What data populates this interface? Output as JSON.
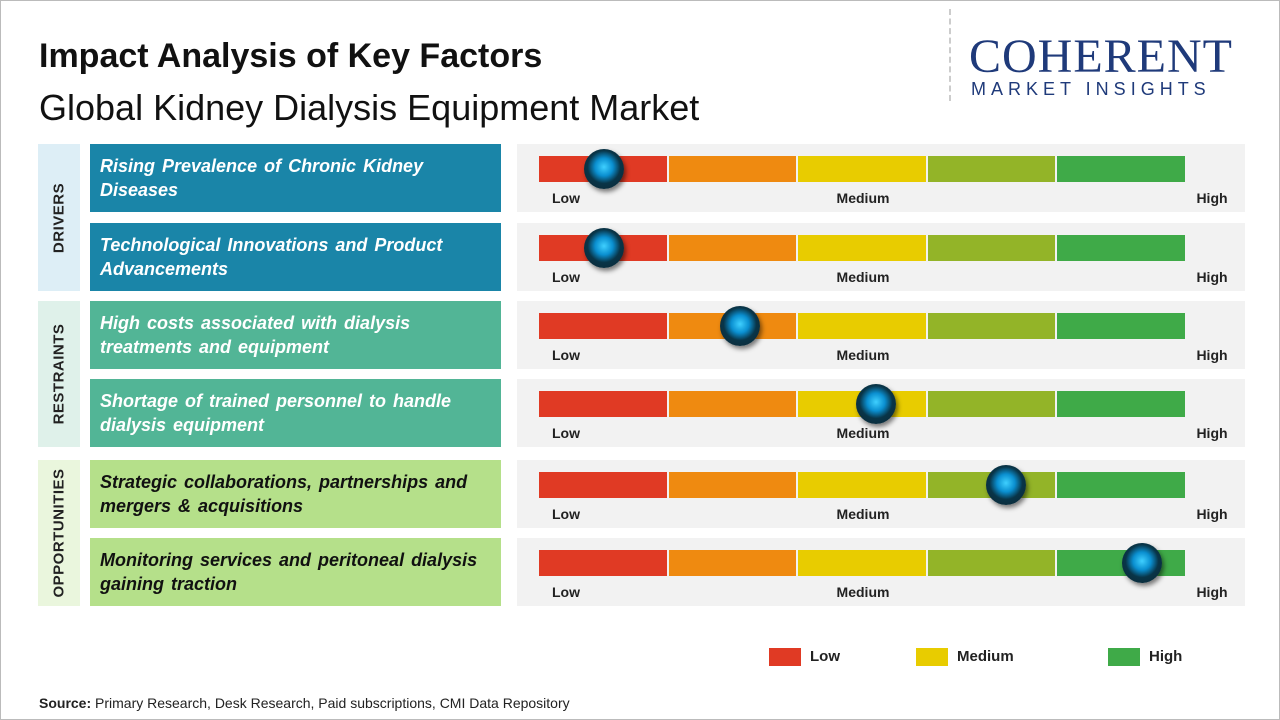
{
  "header": {
    "title": "Impact Analysis of Key Factors",
    "subtitle": "Global Kidney Dialysis Equipment Market"
  },
  "logo": {
    "name": "COHERENT",
    "tagline": "MARKET INSIGHTS"
  },
  "scale": {
    "labels": [
      "Low",
      "Medium",
      "High"
    ],
    "xlim": [
      0,
      1
    ],
    "colors": [
      "#e03a24",
      "#ef8a10",
      "#e8cc00",
      "#93b428",
      "#3faa48"
    ]
  },
  "groups": [
    {
      "name": "DRIVERS",
      "color": "#1a85a8",
      "text_color": "#ffffff",
      "side_color": "#ddeef6",
      "factors": [
        {
          "text": "Rising Prevalence of Chronic Kidney Diseases",
          "impact": 0.1
        },
        {
          "text": "Technological Innovations and Product Advancements",
          "impact": 0.1
        }
      ]
    },
    {
      "name": "RESTRAINTS",
      "color": "#52b596",
      "text_color": "#ffffff",
      "side_color": "#dff1ea",
      "factors": [
        {
          "text": "High costs associated with dialysis treatments and equipment",
          "impact": 0.31
        },
        {
          "text": "Shortage of trained personnel to handle dialysis equipment",
          "impact": 0.52
        }
      ]
    },
    {
      "name": "OPPORTUNITIES",
      "color": "#b5e08a",
      "text_color": "#111111",
      "side_color": "#eaf6dd",
      "factors": [
        {
          "text": "Strategic collaborations, partnerships and mergers & acquisitions",
          "impact": 0.72
        },
        {
          "text": "Monitoring services and peritoneal dialysis gaining traction",
          "impact": 0.93
        }
      ]
    }
  ],
  "legend": [
    {
      "label": "Low",
      "color": "#e03a24"
    },
    {
      "label": "Medium",
      "color": "#e8cc00"
    },
    {
      "label": "High",
      "color": "#3faa48"
    }
  ],
  "source": {
    "label": "Source:",
    "text": "Primary Research, Desk Research, Paid subscriptions, CMI Data Repository"
  }
}
